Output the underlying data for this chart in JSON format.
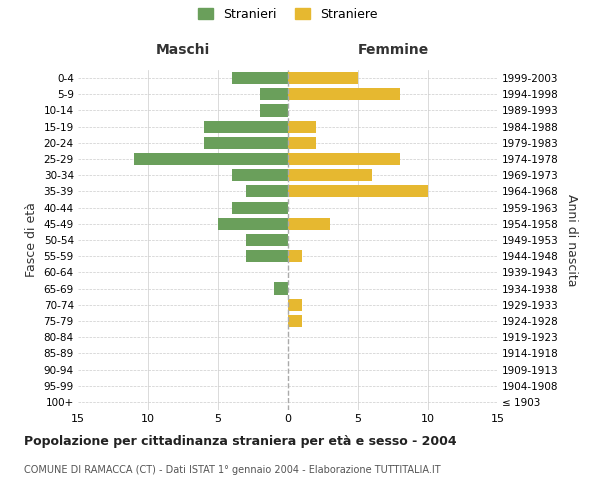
{
  "age_groups": [
    "100+",
    "95-99",
    "90-94",
    "85-89",
    "80-84",
    "75-79",
    "70-74",
    "65-69",
    "60-64",
    "55-59",
    "50-54",
    "45-49",
    "40-44",
    "35-39",
    "30-34",
    "25-29",
    "20-24",
    "15-19",
    "10-14",
    "5-9",
    "0-4"
  ],
  "birth_years": [
    "≤ 1903",
    "1904-1908",
    "1909-1913",
    "1914-1918",
    "1919-1923",
    "1924-1928",
    "1929-1933",
    "1934-1938",
    "1939-1943",
    "1944-1948",
    "1949-1953",
    "1954-1958",
    "1959-1963",
    "1964-1968",
    "1969-1973",
    "1974-1978",
    "1979-1983",
    "1984-1988",
    "1989-1993",
    "1994-1998",
    "1999-2003"
  ],
  "maschi": [
    0,
    0,
    0,
    0,
    0,
    0,
    0,
    1,
    0,
    3,
    3,
    5,
    4,
    3,
    4,
    11,
    6,
    6,
    2,
    2,
    4
  ],
  "femmine": [
    0,
    0,
    0,
    0,
    0,
    1,
    1,
    0,
    0,
    1,
    0,
    3,
    0,
    10,
    6,
    8,
    2,
    2,
    0,
    8,
    5
  ],
  "color_maschi": "#6a9f5b",
  "color_femmine": "#e6b830",
  "title": "Popolazione per cittadinanza straniera per età e sesso - 2004",
  "subtitle": "COMUNE DI RAMACCA (CT) - Dati ISTAT 1° gennaio 2004 - Elaborazione TUTTITALIA.IT",
  "xlabel_left": "Maschi",
  "xlabel_right": "Femmine",
  "ylabel_left": "Fasce di età",
  "ylabel_right": "Anni di nascita",
  "legend_maschi": "Stranieri",
  "legend_femmine": "Straniere",
  "xlim": 15,
  "background_color": "#ffffff",
  "grid_color": "#cccccc",
  "grid_color_dashed": "#cccccc"
}
